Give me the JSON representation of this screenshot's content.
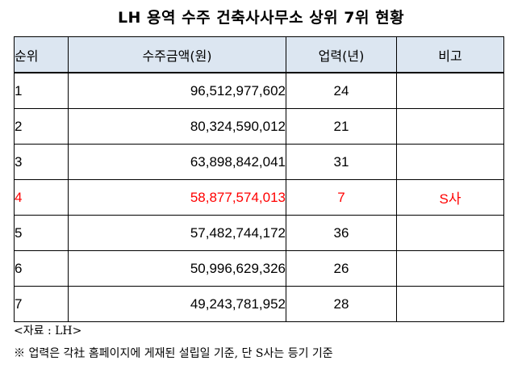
{
  "title": "LH 용역 수주 건축사사무소 상위 7위 현황",
  "table": {
    "headers": {
      "rank": "순위",
      "amount": "수주금액(원)",
      "years": "업력(년)",
      "note": "비고"
    },
    "rows": [
      {
        "rank": "1",
        "amount": "96,512,977,602",
        "years": "24",
        "note": ""
      },
      {
        "rank": "2",
        "amount": "80,324,590,012",
        "years": "21",
        "note": ""
      },
      {
        "rank": "3",
        "amount": "63,898,842,041",
        "years": "31",
        "note": ""
      },
      {
        "rank": "4",
        "amount": "58,877,574,013",
        "years": "7",
        "note": "S사"
      },
      {
        "rank": "5",
        "amount": "57,482,744,172",
        "years": "36",
        "note": ""
      },
      {
        "rank": "6",
        "amount": "50,996,629,326",
        "years": "26",
        "note": ""
      },
      {
        "rank": "7",
        "amount": "49,243,781,952",
        "years": "28",
        "note": ""
      }
    ],
    "highlight_row_rank": "4",
    "highlight_color": "#ff0000",
    "header_background": "#dce6f1"
  },
  "source": "<자료 : LH>",
  "footnote": "※ 업력은 각社 홈페이지에 게재된 설립일 기준, 단 S사는 등기 기준"
}
